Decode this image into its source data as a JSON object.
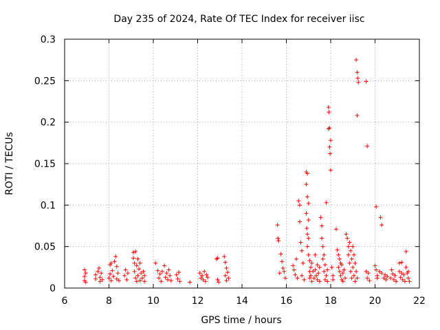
{
  "chart_data": {
    "type": "scatter",
    "title": "Day 235 of 2024, Rate Of TEC Index for receiver iisc",
    "xlabel": "GPS time / hours",
    "ylabel": "ROTI / TECUs",
    "xlim": [
      6,
      22
    ],
    "ylim": [
      0,
      0.3
    ],
    "x_ticks": [
      6,
      8,
      10,
      12,
      14,
      16,
      18,
      20,
      22
    ],
    "x_tick_labels": [
      "6",
      "8",
      "10",
      "12",
      "14",
      "16",
      "18",
      "20",
      "22"
    ],
    "y_ticks": [
      0,
      0.05,
      0.1,
      0.15,
      0.2,
      0.25,
      0.3
    ],
    "y_tick_labels": [
      "0",
      "0.05",
      "0.1",
      "0.15",
      "0.2",
      "0.25",
      "0.3"
    ],
    "grid": true,
    "marker": "+",
    "color": "#ff0000",
    "series": [
      {
        "name": "iisc",
        "points": [
          [
            6.9,
            0.022
          ],
          [
            6.9,
            0.014
          ],
          [
            6.9,
            0.009
          ],
          [
            6.95,
            0.018
          ],
          [
            6.95,
            0.007
          ],
          [
            7.4,
            0.016
          ],
          [
            7.4,
            0.011
          ],
          [
            7.5,
            0.02
          ],
          [
            7.55,
            0.024
          ],
          [
            7.6,
            0.013
          ],
          [
            7.6,
            0.008
          ],
          [
            7.65,
            0.018
          ],
          [
            7.7,
            0.01
          ],
          [
            8.0,
            0.012
          ],
          [
            8.05,
            0.028
          ],
          [
            8.05,
            0.017
          ],
          [
            8.1,
            0.03
          ],
          [
            8.1,
            0.009
          ],
          [
            8.15,
            0.021
          ],
          [
            8.2,
            0.014
          ],
          [
            8.25,
            0.032
          ],
          [
            8.3,
            0.038
          ],
          [
            8.35,
            0.026
          ],
          [
            8.35,
            0.011
          ],
          [
            8.4,
            0.018
          ],
          [
            8.45,
            0.009
          ],
          [
            8.7,
            0.015
          ],
          [
            8.75,
            0.022
          ],
          [
            8.8,
            0.01
          ],
          [
            8.85,
            0.018
          ],
          [
            9.1,
            0.043
          ],
          [
            9.1,
            0.036
          ],
          [
            9.15,
            0.03
          ],
          [
            9.15,
            0.02
          ],
          [
            9.2,
            0.044
          ],
          [
            9.2,
            0.012
          ],
          [
            9.25,
            0.027
          ],
          [
            9.25,
            0.008
          ],
          [
            9.3,
            0.035
          ],
          [
            9.3,
            0.015
          ],
          [
            9.35,
            0.023
          ],
          [
            9.4,
            0.03
          ],
          [
            9.4,
            0.009
          ],
          [
            9.45,
            0.018
          ],
          [
            9.5,
            0.012
          ],
          [
            9.55,
            0.02
          ],
          [
            9.6,
            0.008
          ],
          [
            9.6,
            0.015
          ],
          [
            10.1,
            0.03
          ],
          [
            10.2,
            0.021
          ],
          [
            10.25,
            0.012
          ],
          [
            10.3,
            0.017
          ],
          [
            10.35,
            0.008
          ],
          [
            10.4,
            0.02
          ],
          [
            10.5,
            0.027
          ],
          [
            10.55,
            0.013
          ],
          [
            10.6,
            0.018
          ],
          [
            10.65,
            0.01
          ],
          [
            10.7,
            0.022
          ],
          [
            10.75,
            0.015
          ],
          [
            10.8,
            0.009
          ],
          [
            11.05,
            0.016
          ],
          [
            11.1,
            0.011
          ],
          [
            11.15,
            0.019
          ],
          [
            11.2,
            0.008
          ],
          [
            11.65,
            0.007
          ],
          [
            12.1,
            0.018
          ],
          [
            12.15,
            0.012
          ],
          [
            12.2,
            0.015
          ],
          [
            12.25,
            0.01
          ],
          [
            12.3,
            0.02
          ],
          [
            12.35,
            0.008
          ],
          [
            12.4,
            0.016
          ],
          [
            12.45,
            0.013
          ],
          [
            12.85,
            0.035
          ],
          [
            12.9,
            0.036
          ],
          [
            12.9,
            0.01
          ],
          [
            12.95,
            0.007
          ],
          [
            13.2,
            0.038
          ],
          [
            13.25,
            0.031
          ],
          [
            13.25,
            0.015
          ],
          [
            13.3,
            0.024
          ],
          [
            13.3,
            0.009
          ],
          [
            13.35,
            0.019
          ],
          [
            13.4,
            0.012
          ],
          [
            15.6,
            0.076
          ],
          [
            15.62,
            0.06
          ],
          [
            15.65,
            0.057
          ],
          [
            15.7,
            0.018
          ],
          [
            15.75,
            0.041
          ],
          [
            15.8,
            0.032
          ],
          [
            15.85,
            0.024
          ],
          [
            15.9,
            0.02
          ],
          [
            15.95,
            0.012
          ],
          [
            16.3,
            0.027
          ],
          [
            16.35,
            0.022
          ],
          [
            16.4,
            0.016
          ],
          [
            16.45,
            0.035
          ],
          [
            16.5,
            0.012
          ],
          [
            16.55,
            0.105
          ],
          [
            16.6,
            0.1
          ],
          [
            16.6,
            0.08
          ],
          [
            16.65,
            0.055
          ],
          [
            16.7,
            0.045
          ],
          [
            16.7,
            0.015
          ],
          [
            16.75,
            0.03
          ],
          [
            16.8,
            0.01
          ],
          [
            16.9,
            0.14
          ],
          [
            16.9,
            0.125
          ],
          [
            16.9,
            0.09
          ],
          [
            16.92,
            0.072
          ],
          [
            16.95,
            0.138
          ],
          [
            16.95,
            0.11
          ],
          [
            16.95,
            0.065
          ],
          [
            16.95,
            0.05
          ],
          [
            17.0,
            0.102
          ],
          [
            17.0,
            0.082
          ],
          [
            17.0,
            0.06
          ],
          [
            17.0,
            0.04
          ],
          [
            17.05,
            0.033
          ],
          [
            17.05,
            0.02
          ],
          [
            17.05,
            0.012
          ],
          [
            17.1,
            0.025
          ],
          [
            17.1,
            0.015
          ],
          [
            17.15,
            0.03
          ],
          [
            17.15,
            0.008
          ],
          [
            17.2,
            0.02
          ],
          [
            17.25,
            0.012
          ],
          [
            17.3,
            0.04
          ],
          [
            17.3,
            0.022
          ],
          [
            17.35,
            0.015
          ],
          [
            17.4,
            0.028
          ],
          [
            17.4,
            0.01
          ],
          [
            17.45,
            0.018
          ],
          [
            17.5,
            0.025
          ],
          [
            17.5,
            0.008
          ],
          [
            17.55,
            0.085
          ],
          [
            17.6,
            0.075
          ],
          [
            17.6,
            0.06
          ],
          [
            17.65,
            0.05
          ],
          [
            17.65,
            0.035
          ],
          [
            17.7,
            0.04
          ],
          [
            17.7,
            0.02
          ],
          [
            17.75,
            0.028
          ],
          [
            17.75,
            0.01
          ],
          [
            17.8,
            0.015
          ],
          [
            17.85,
            0.022
          ],
          [
            17.85,
            0.008
          ],
          [
            17.9,
            0.218
          ],
          [
            17.9,
            0.192
          ],
          [
            17.92,
            0.212
          ],
          [
            17.95,
            0.193
          ],
          [
            17.95,
            0.17
          ],
          [
            17.97,
            0.162
          ],
          [
            18.0,
            0.142
          ],
          [
            18.0,
            0.178
          ],
          [
            18.05,
            0.025
          ],
          [
            18.1,
            0.015
          ],
          [
            18.1,
            0.01
          ],
          [
            17.8,
            0.103
          ],
          [
            18.25,
            0.071
          ],
          [
            18.3,
            0.046
          ],
          [
            18.35,
            0.04
          ],
          [
            18.35,
            0.025
          ],
          [
            18.4,
            0.035
          ],
          [
            18.4,
            0.02
          ],
          [
            18.45,
            0.03
          ],
          [
            18.45,
            0.015
          ],
          [
            18.5,
            0.028
          ],
          [
            18.5,
            0.01
          ],
          [
            18.55,
            0.018
          ],
          [
            18.55,
            0.008
          ],
          [
            18.6,
            0.022
          ],
          [
            18.65,
            0.012
          ],
          [
            18.7,
            0.065
          ],
          [
            18.75,
            0.06
          ],
          [
            18.8,
            0.05
          ],
          [
            18.8,
            0.04
          ],
          [
            18.85,
            0.055
          ],
          [
            18.85,
            0.03
          ],
          [
            18.9,
            0.045
          ],
          [
            18.9,
            0.02
          ],
          [
            18.95,
            0.035
          ],
          [
            18.95,
            0.012
          ],
          [
            19.0,
            0.05
          ],
          [
            19.0,
            0.025
          ],
          [
            19.05,
            0.04
          ],
          [
            19.05,
            0.015
          ],
          [
            19.1,
            0.03
          ],
          [
            19.1,
            0.008
          ],
          [
            19.15,
            0.02
          ],
          [
            19.2,
            0.012
          ],
          [
            19.15,
            0.275
          ],
          [
            19.2,
            0.26
          ],
          [
            19.22,
            0.253
          ],
          [
            19.2,
            0.208
          ],
          [
            19.25,
            0.248
          ],
          [
            19.6,
            0.249
          ],
          [
            19.65,
            0.171
          ],
          [
            19.6,
            0.02
          ],
          [
            19.65,
            0.012
          ],
          [
            19.7,
            0.018
          ],
          [
            19.75,
            0.009
          ],
          [
            20.0,
            0.027
          ],
          [
            20.05,
            0.022
          ],
          [
            20.05,
            0.098
          ],
          [
            20.1,
            0.015
          ],
          [
            20.1,
            0.012
          ],
          [
            20.2,
            0.02
          ],
          [
            20.25,
            0.085
          ],
          [
            20.3,
            0.076
          ],
          [
            20.3,
            0.018
          ],
          [
            20.4,
            0.012
          ],
          [
            20.45,
            0.016
          ],
          [
            20.5,
            0.01
          ],
          [
            20.55,
            0.014
          ],
          [
            20.7,
            0.012
          ],
          [
            20.75,
            0.022
          ],
          [
            20.8,
            0.017
          ],
          [
            20.85,
            0.01
          ],
          [
            20.9,
            0.015
          ],
          [
            20.95,
            0.008
          ],
          [
            21.1,
            0.02
          ],
          [
            21.1,
            0.03
          ],
          [
            21.15,
            0.013
          ],
          [
            21.2,
            0.031
          ],
          [
            21.2,
            0.018
          ],
          [
            21.25,
            0.01
          ],
          [
            21.3,
            0.016
          ],
          [
            21.35,
            0.008
          ],
          [
            21.4,
            0.044
          ],
          [
            21.4,
            0.025
          ],
          [
            21.45,
            0.018
          ],
          [
            21.5,
            0.012
          ],
          [
            21.5,
            0.02
          ],
          [
            21.55,
            0.008
          ]
        ]
      }
    ]
  }
}
